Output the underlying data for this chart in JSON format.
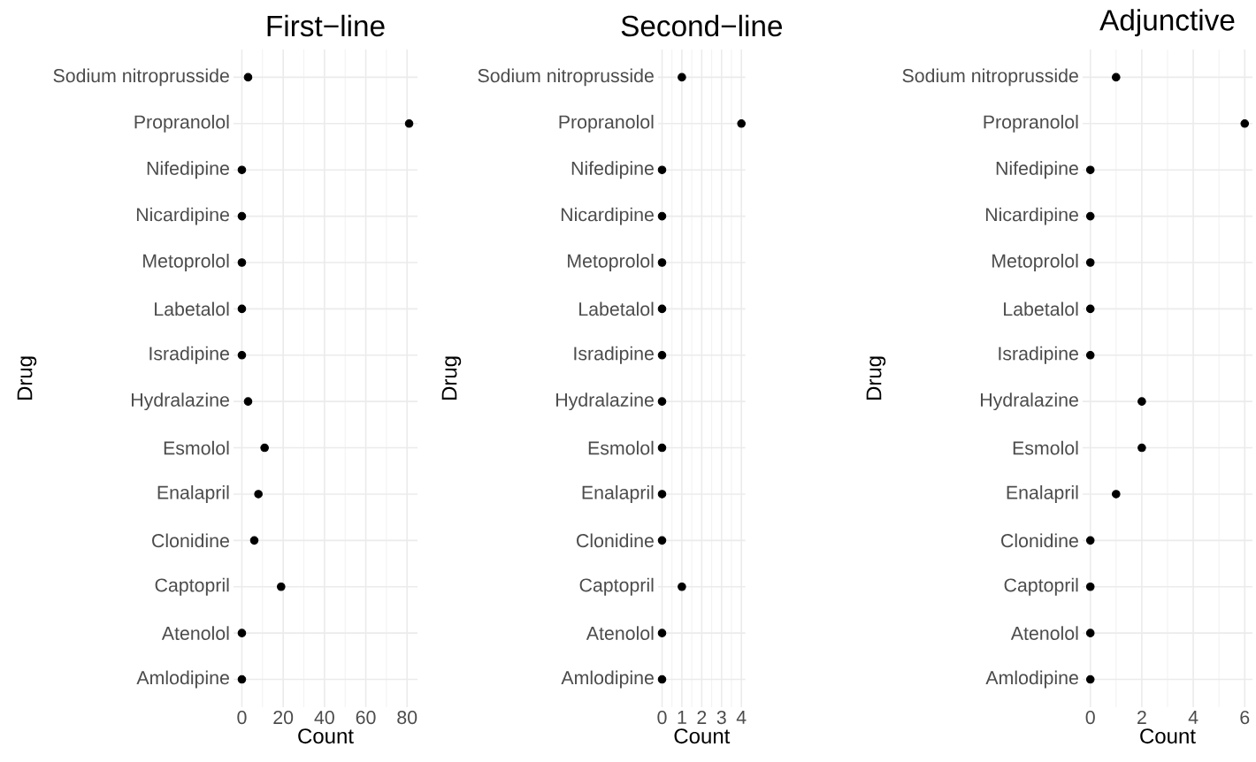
{
  "chart_data": [
    {
      "type": "scatter",
      "title": "First−line",
      "xlabel": "Count",
      "ylabel": "Drug",
      "categories": [
        "Sodium nitroprusside",
        "Propranolol",
        "Nifedipine",
        "Nicardipine",
        "Metoprolol",
        "Labetalol",
        "Isradipine",
        "Hydralazine",
        "Esmolol",
        "Enalapril",
        "Clonidine",
        "Captopril",
        "Atenolol",
        "Amlodipine"
      ],
      "orientation": "horizontal",
      "values": [
        3,
        81,
        0,
        0,
        0,
        0,
        0,
        3,
        11,
        8,
        6,
        19,
        0,
        0
      ],
      "color": "#000000",
      "grid": true,
      "xlim": [
        -4.05,
        85.05
      ],
      "xticks": [
        0,
        20,
        40,
        60,
        80
      ]
    },
    {
      "type": "scatter",
      "title": "Second−line",
      "xlabel": "Count",
      "ylabel": "Drug",
      "categories": [
        "Sodium nitroprusside",
        "Propranolol",
        "Nifedipine",
        "Nicardipine",
        "Metoprolol",
        "Labetalol",
        "Isradipine",
        "Hydralazine",
        "Esmolol",
        "Enalapril",
        "Clonidine",
        "Captopril",
        "Atenolol",
        "Amlodipine"
      ],
      "orientation": "horizontal",
      "values": [
        1,
        4,
        0,
        0,
        0,
        0,
        0,
        0,
        0,
        0,
        0,
        1,
        0,
        0
      ],
      "color": "#000000",
      "grid": true,
      "xlim": [
        -0.2,
        4.2
      ],
      "xticks": [
        0,
        1,
        2,
        3,
        4
      ]
    },
    {
      "type": "scatter",
      "title": "Adjunctive",
      "xlabel": "Count",
      "ylabel": "Drug",
      "categories": [
        "Sodium nitroprusside",
        "Propranolol",
        "Nifedipine",
        "Nicardipine",
        "Metoprolol",
        "Labetalol",
        "Isradipine",
        "Hydralazine",
        "Esmolol",
        "Enalapril",
        "Clonidine",
        "Captopril",
        "Atenolol",
        "Amlodipine"
      ],
      "orientation": "horizontal",
      "values": [
        1,
        6,
        0,
        0,
        0,
        0,
        0,
        2,
        2,
        1,
        0,
        0,
        0,
        0
      ],
      "color": "#000000",
      "grid": true,
      "xlim": [
        -0.3,
        6.3
      ],
      "xticks": [
        0,
        2,
        4,
        6
      ]
    }
  ]
}
